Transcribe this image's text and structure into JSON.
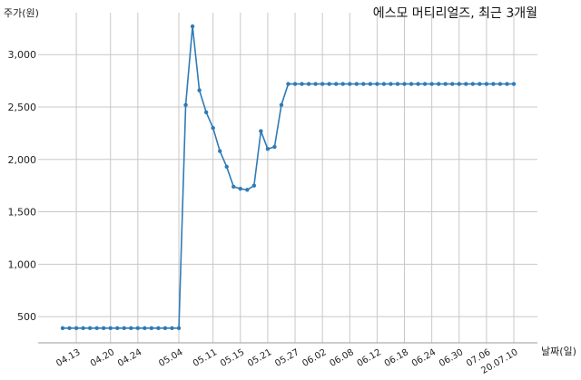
{
  "chart_data": {
    "type": "line",
    "title": "에스모 머티리얼즈, 최근 3개월",
    "ylabel": "주가(원)",
    "xlabel": "날짜(일)",
    "ylim": [
      250,
      3400
    ],
    "yticks": [
      500,
      1000,
      1500,
      2000,
      2500,
      3000
    ],
    "ytick_labels": [
      "500",
      "1,000",
      "1,500",
      "2,000",
      "2,500",
      "3,000"
    ],
    "xtick_labels": [
      "04.13",
      "04.20",
      "04.24",
      "05.04",
      "05.11",
      "05.15",
      "05.21",
      "05.27",
      "06.02",
      "06.08",
      "06.12",
      "06.18",
      "06.24",
      "06.30",
      "07.06",
      "20.07.10"
    ],
    "xtick_indices": [
      2,
      7,
      11,
      17,
      22,
      26,
      30,
      34,
      38,
      42,
      46,
      50,
      54,
      58,
      62,
      66
    ],
    "grid": true,
    "series": [
      {
        "color": "#2f7bb6",
        "values": [
          390,
          390,
          390,
          390,
          390,
          390,
          390,
          390,
          390,
          390,
          390,
          390,
          390,
          390,
          390,
          390,
          390,
          390,
          2520,
          3270,
          2660,
          2450,
          2300,
          2080,
          1930,
          1740,
          1720,
          1710,
          1750,
          2270,
          2100,
          2120,
          2520,
          2720,
          2720,
          2720,
          2720,
          2720,
          2720,
          2720,
          2720,
          2720,
          2720,
          2720,
          2720,
          2720,
          2720,
          2720,
          2720,
          2720,
          2720,
          2720,
          2720,
          2720,
          2720,
          2720,
          2720,
          2720,
          2720,
          2720,
          2720,
          2720,
          2720,
          2720,
          2720,
          2720,
          2720
        ]
      }
    ]
  }
}
